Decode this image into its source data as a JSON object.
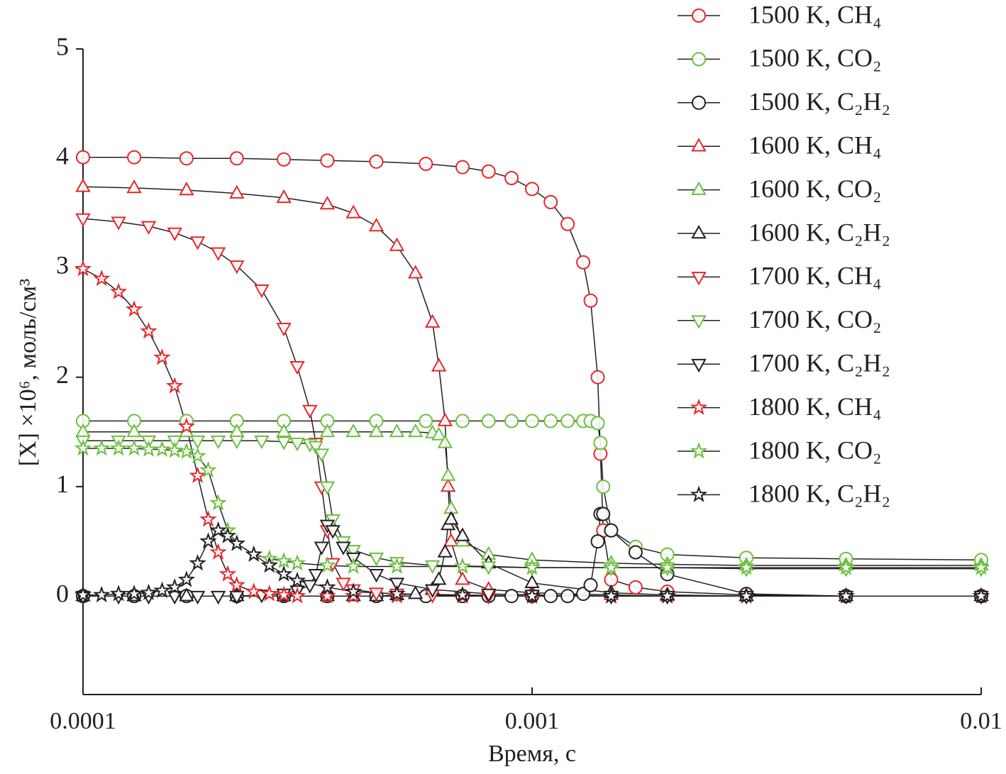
{
  "chart_data": {
    "type": "line",
    "xlabel": "Время, с",
    "ylabel": "[X] ×10⁶, моль/см³",
    "xscale": "log",
    "xlim": [
      0.0001,
      0.01
    ],
    "xticks": [
      0.0001,
      0.001,
      0.01
    ],
    "ylim": [
      -0.9,
      5
    ],
    "yticks": [
      0,
      1,
      2,
      3,
      4,
      5
    ],
    "legend": "right",
    "series": [
      {
        "name": "1500 K, CH₄",
        "color": "#e8262a",
        "marker": "circle",
        "x": [
          0.0001,
          0.00013,
          0.00017,
          0.00022,
          0.00028,
          0.00035,
          0.00045,
          0.00058,
          0.0007,
          0.0008,
          0.0009,
          0.001,
          0.0011,
          0.0012,
          0.0013,
          0.00135,
          0.0014,
          0.00142,
          0.00144,
          0.0015,
          0.0017,
          0.002,
          0.003,
          0.005,
          0.01
        ],
        "values": [
          4.01,
          4.01,
          4.0,
          4.0,
          3.99,
          3.98,
          3.97,
          3.95,
          3.92,
          3.88,
          3.82,
          3.72,
          3.6,
          3.4,
          3.05,
          2.7,
          2.0,
          1.3,
          0.6,
          0.15,
          0.08,
          0.04,
          0.01,
          0,
          0
        ]
      },
      {
        "name": "1500 K, CO₂",
        "color": "#6cbf3f",
        "marker": "circle",
        "x": [
          0.0001,
          0.00013,
          0.00017,
          0.00022,
          0.00028,
          0.00035,
          0.00045,
          0.00058,
          0.0007,
          0.0008,
          0.0009,
          0.001,
          0.0011,
          0.0012,
          0.0013,
          0.00135,
          0.0014,
          0.00142,
          0.00144,
          0.0015,
          0.0017,
          0.002,
          0.003,
          0.005,
          0.01
        ],
        "values": [
          1.6,
          1.6,
          1.6,
          1.6,
          1.6,
          1.6,
          1.6,
          1.6,
          1.6,
          1.6,
          1.6,
          1.6,
          1.6,
          1.6,
          1.6,
          1.6,
          1.58,
          1.4,
          1.0,
          0.6,
          0.45,
          0.38,
          0.35,
          0.34,
          0.33
        ]
      },
      {
        "name": "1500 K, C₂H₂",
        "color": "#231f20",
        "marker": "circle",
        "x": [
          0.0001,
          0.00013,
          0.00017,
          0.00022,
          0.00028,
          0.00035,
          0.00045,
          0.00058,
          0.0007,
          0.0008,
          0.0009,
          0.001,
          0.0011,
          0.0012,
          0.0013,
          0.00135,
          0.0014,
          0.00142,
          0.00144,
          0.0015,
          0.0017,
          0.002,
          0.003,
          0.005,
          0.01
        ],
        "values": [
          0,
          0,
          0,
          0,
          0,
          0,
          0,
          0,
          0,
          0,
          0,
          0,
          0,
          0,
          0.02,
          0.1,
          0.5,
          0.75,
          0.75,
          0.6,
          0.4,
          0.2,
          0.02,
          0,
          0
        ]
      },
      {
        "name": "1600 K, CH₄",
        "color": "#e8262a",
        "marker": "triangle-up",
        "x": [
          0.0001,
          0.00013,
          0.00017,
          0.00022,
          0.00028,
          0.00035,
          0.0004,
          0.00045,
          0.0005,
          0.00055,
          0.0006,
          0.00062,
          0.00064,
          0.00065,
          0.00066,
          0.0007,
          0.0008,
          0.001,
          0.0015,
          0.002,
          0.003,
          0.005,
          0.01
        ],
        "values": [
          3.74,
          3.73,
          3.71,
          3.68,
          3.64,
          3.58,
          3.5,
          3.38,
          3.2,
          2.95,
          2.5,
          2.1,
          1.6,
          1.0,
          0.5,
          0.15,
          0.06,
          0.03,
          0.01,
          0,
          0,
          0,
          0
        ]
      },
      {
        "name": "1600 K, CO₂",
        "color": "#6cbf3f",
        "marker": "triangle-up",
        "x": [
          0.0001,
          0.00013,
          0.00017,
          0.00022,
          0.00028,
          0.00035,
          0.0004,
          0.00045,
          0.0005,
          0.00055,
          0.0006,
          0.00062,
          0.00064,
          0.00065,
          0.00066,
          0.0007,
          0.0008,
          0.001,
          0.0015,
          0.002,
          0.003,
          0.005,
          0.01
        ],
        "values": [
          1.5,
          1.5,
          1.5,
          1.5,
          1.5,
          1.5,
          1.5,
          1.5,
          1.5,
          1.5,
          1.49,
          1.47,
          1.4,
          1.1,
          0.8,
          0.5,
          0.38,
          0.33,
          0.3,
          0.29,
          0.28,
          0.28,
          0.28
        ]
      },
      {
        "name": "1600 K, C₂H₂",
        "color": "#231f20",
        "marker": "triangle-up",
        "x": [
          0.0001,
          0.00013,
          0.00017,
          0.00022,
          0.00028,
          0.00035,
          0.0004,
          0.00045,
          0.0005,
          0.00055,
          0.0006,
          0.00062,
          0.00064,
          0.00065,
          0.00066,
          0.0007,
          0.0008,
          0.001,
          0.0015,
          0.002,
          0.003,
          0.005,
          0.01
        ],
        "values": [
          0,
          0,
          0,
          0,
          0,
          0,
          0,
          0,
          0.01,
          0.02,
          0.06,
          0.15,
          0.4,
          0.65,
          0.7,
          0.55,
          0.3,
          0.12,
          0.03,
          0.01,
          0,
          0,
          0
        ]
      },
      {
        "name": "1700 K, CH₄",
        "color": "#e8262a",
        "marker": "triangle-down",
        "x": [
          0.0001,
          0.00012,
          0.00014,
          0.00016,
          0.00018,
          0.0002,
          0.00022,
          0.00025,
          0.00028,
          0.0003,
          0.00032,
          0.00033,
          0.00034,
          0.00035,
          0.00036,
          0.00038,
          0.0004,
          0.00045,
          0.0005,
          0.0006,
          0.0008,
          0.001,
          0.0015,
          0.002,
          0.003,
          0.005,
          0.01
        ],
        "values": [
          3.45,
          3.42,
          3.38,
          3.32,
          3.24,
          3.14,
          3.02,
          2.8,
          2.45,
          2.1,
          1.7,
          1.4,
          1.0,
          0.6,
          0.3,
          0.12,
          0.06,
          0.03,
          0.02,
          0.01,
          0,
          0,
          0,
          0,
          0,
          0,
          0
        ]
      },
      {
        "name": "1700 K, CO₂",
        "color": "#6cbf3f",
        "marker": "triangle-down",
        "x": [
          0.0001,
          0.00012,
          0.00014,
          0.00016,
          0.00018,
          0.0002,
          0.00022,
          0.00025,
          0.00028,
          0.0003,
          0.00032,
          0.00033,
          0.00034,
          0.00035,
          0.00036,
          0.00038,
          0.0004,
          0.00045,
          0.0005,
          0.0006,
          0.0008,
          0.001,
          0.0015,
          0.002,
          0.003,
          0.005,
          0.01
        ],
        "values": [
          1.42,
          1.42,
          1.42,
          1.42,
          1.42,
          1.42,
          1.42,
          1.42,
          1.41,
          1.4,
          1.39,
          1.37,
          1.3,
          1.0,
          0.7,
          0.5,
          0.42,
          0.35,
          0.31,
          0.28,
          0.27,
          0.26,
          0.26,
          0.26,
          0.25,
          0.25,
          0.25
        ]
      },
      {
        "name": "1700 K, C₂H₂",
        "color": "#231f20",
        "marker": "triangle-down",
        "x": [
          0.0001,
          0.00012,
          0.00014,
          0.00016,
          0.00018,
          0.0002,
          0.00022,
          0.00025,
          0.00028,
          0.0003,
          0.00032,
          0.00033,
          0.00034,
          0.00035,
          0.00036,
          0.00038,
          0.0004,
          0.00045,
          0.0005,
          0.0006,
          0.0008,
          0.001,
          0.0015,
          0.002,
          0.003,
          0.005,
          0.01
        ],
        "values": [
          0,
          0,
          0,
          0,
          0,
          0,
          0,
          0.01,
          0.02,
          0.05,
          0.1,
          0.2,
          0.45,
          0.65,
          0.6,
          0.45,
          0.35,
          0.2,
          0.12,
          0.06,
          0.02,
          0.01,
          0,
          0,
          0,
          0,
          0
        ]
      },
      {
        "name": "1800 K, CH₄",
        "color": "#e8262a",
        "marker": "star",
        "x": [
          0.0001,
          0.00011,
          0.00012,
          0.00013,
          0.00014,
          0.00015,
          0.00016,
          0.00017,
          0.00018,
          0.00019,
          0.0002,
          0.00021,
          0.00022,
          0.00024,
          0.00026,
          0.00028,
          0.0003,
          0.00035,
          0.0004,
          0.0005,
          0.0007,
          0.001,
          0.0015,
          0.002,
          0.003,
          0.005,
          0.01
        ],
        "values": [
          2.99,
          2.9,
          2.78,
          2.62,
          2.42,
          2.18,
          1.92,
          1.55,
          1.1,
          0.7,
          0.4,
          0.2,
          0.1,
          0.04,
          0.02,
          0.01,
          0,
          0,
          0,
          0,
          0,
          0,
          0,
          0,
          0,
          0,
          0
        ]
      },
      {
        "name": "1800 K, CO₂",
        "color": "#6cbf3f",
        "marker": "star",
        "x": [
          0.0001,
          0.00011,
          0.00012,
          0.00013,
          0.00014,
          0.00015,
          0.00016,
          0.00017,
          0.00018,
          0.00019,
          0.0002,
          0.00021,
          0.00022,
          0.00024,
          0.00026,
          0.00028,
          0.0003,
          0.00035,
          0.0004,
          0.0005,
          0.0007,
          0.001,
          0.0015,
          0.002,
          0.003,
          0.005,
          0.01
        ],
        "values": [
          1.35,
          1.35,
          1.35,
          1.35,
          1.34,
          1.34,
          1.33,
          1.32,
          1.28,
          1.15,
          0.85,
          0.6,
          0.48,
          0.38,
          0.34,
          0.32,
          0.3,
          0.28,
          0.27,
          0.27,
          0.27,
          0.26,
          0.26,
          0.26,
          0.26,
          0.26,
          0.26
        ]
      },
      {
        "name": "1800 K, C₂H₂",
        "color": "#231f20",
        "marker": "star",
        "x": [
          0.0001,
          0.00011,
          0.00012,
          0.00013,
          0.00014,
          0.00015,
          0.00016,
          0.00017,
          0.00018,
          0.00019,
          0.0002,
          0.00021,
          0.00022,
          0.00024,
          0.00026,
          0.00028,
          0.0003,
          0.00035,
          0.0004,
          0.0005,
          0.0007,
          0.001,
          0.0015,
          0.002,
          0.003,
          0.005,
          0.01
        ],
        "values": [
          0.01,
          0.01,
          0.02,
          0.02,
          0.03,
          0.05,
          0.08,
          0.15,
          0.3,
          0.5,
          0.6,
          0.55,
          0.48,
          0.38,
          0.28,
          0.2,
          0.14,
          0.08,
          0.04,
          0.02,
          0.01,
          0,
          0,
          0,
          0,
          0,
          0
        ]
      }
    ]
  }
}
